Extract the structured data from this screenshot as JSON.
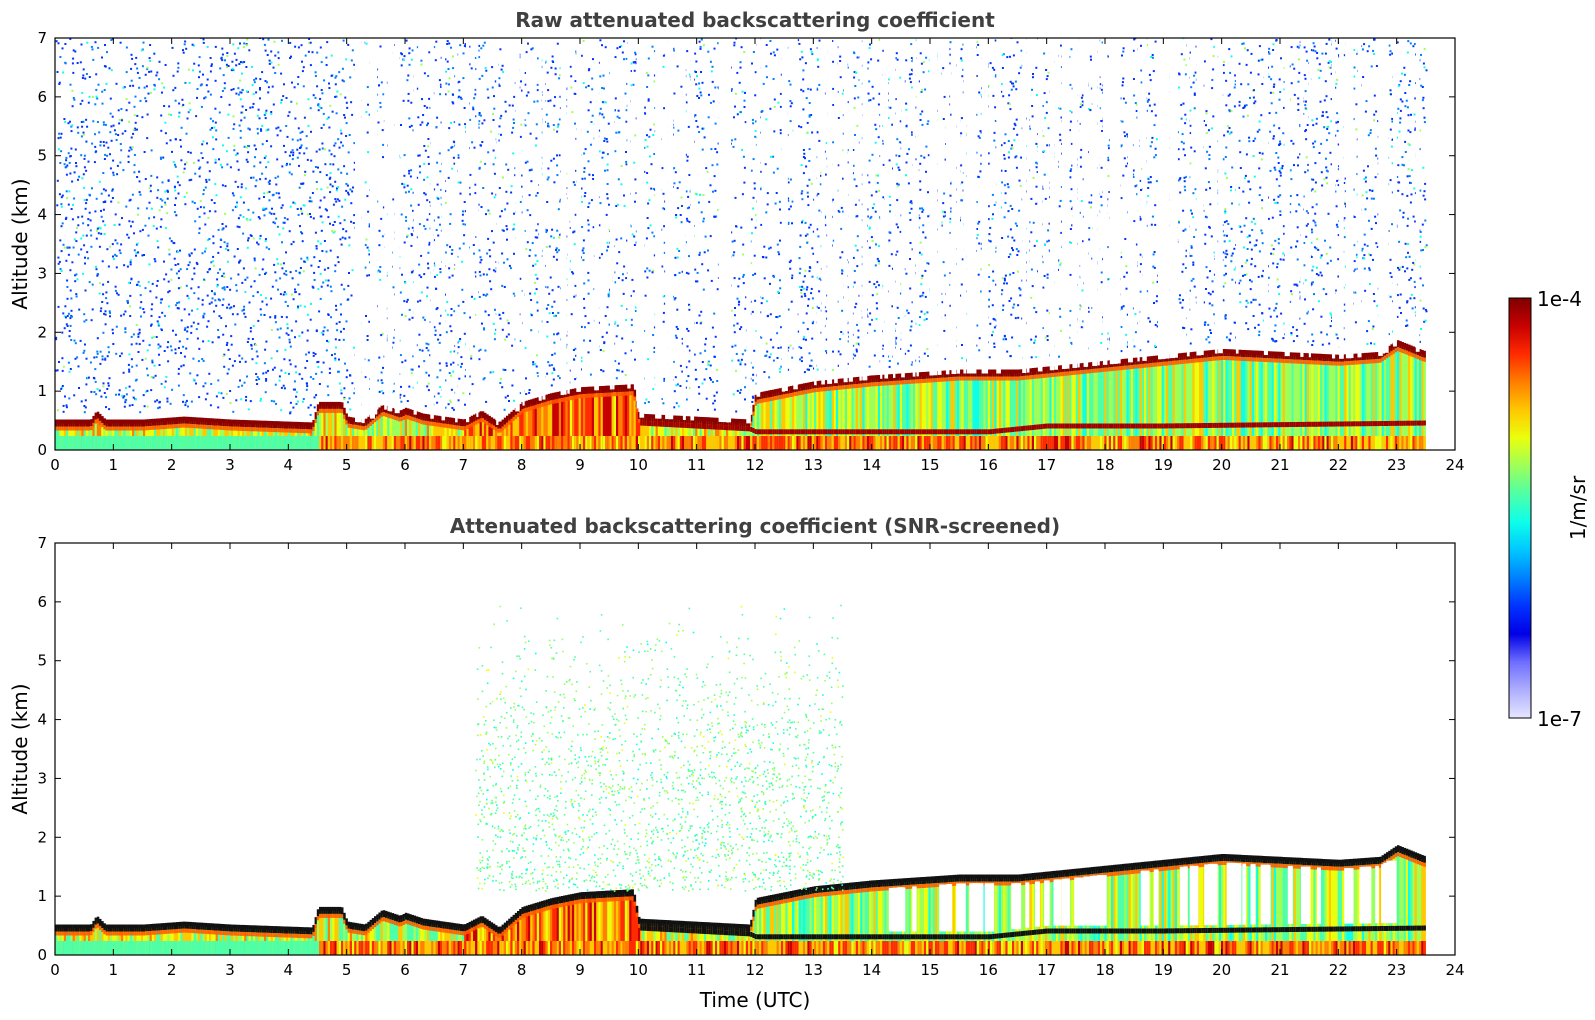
{
  "chart_data": [
    {
      "type": "heatmap",
      "title": "Raw attenuated backscattering coefficient",
      "xlabel": "",
      "ylabel": "Altitude (km)",
      "xlim": [
        0,
        24
      ],
      "ylim": [
        0,
        7
      ],
      "x_ticks": [
        "0",
        "1",
        "2",
        "3",
        "4",
        "5",
        "6",
        "7",
        "8",
        "9",
        "10",
        "11",
        "12",
        "13",
        "14",
        "15",
        "16",
        "17",
        "18",
        "19",
        "20",
        "21",
        "22",
        "23",
        "24"
      ],
      "y_ticks": [
        "0",
        "1",
        "2",
        "3",
        "4",
        "5",
        "6",
        "7"
      ],
      "data_end_time": 23.5,
      "boundary_layer_top_km": [
        [
          0,
          0.45
        ],
        [
          0.6,
          0.45
        ],
        [
          0.7,
          0.6
        ],
        [
          0.85,
          0.45
        ],
        [
          1.5,
          0.45
        ],
        [
          2.2,
          0.5
        ],
        [
          3,
          0.45
        ],
        [
          4.4,
          0.4
        ],
        [
          4.5,
          0.75
        ],
        [
          4.9,
          0.75
        ],
        [
          5.0,
          0.5
        ],
        [
          5.3,
          0.45
        ],
        [
          5.6,
          0.7
        ],
        [
          5.9,
          0.6
        ],
        [
          6.0,
          0.65
        ],
        [
          6.3,
          0.55
        ],
        [
          7.0,
          0.45
        ],
        [
          7.3,
          0.6
        ],
        [
          7.6,
          0.4
        ],
        [
          8.0,
          0.75
        ],
        [
          8.5,
          0.9
        ],
        [
          9.0,
          1.0
        ],
        [
          9.9,
          1.05
        ],
        [
          10.0,
          0.55
        ],
        [
          11.9,
          0.45
        ],
        [
          12.0,
          0.9
        ],
        [
          12.5,
          1.0
        ],
        [
          13.0,
          1.1
        ],
        [
          14.0,
          1.2
        ],
        [
          15.5,
          1.3
        ],
        [
          16.5,
          1.3
        ],
        [
          17.5,
          1.4
        ],
        [
          18.5,
          1.5
        ],
        [
          19.5,
          1.6
        ],
        [
          20.0,
          1.65
        ],
        [
          21.0,
          1.6
        ],
        [
          22.0,
          1.55
        ],
        [
          22.7,
          1.6
        ],
        [
          23.0,
          1.8
        ],
        [
          23.5,
          1.6
        ]
      ],
      "lower_layer_km": [
        [
          10.0,
          0.45
        ],
        [
          11.9,
          0.35
        ],
        [
          12.0,
          0.3
        ],
        [
          13.5,
          0.3
        ],
        [
          15.0,
          0.3
        ],
        [
          16.0,
          0.3
        ],
        [
          17.0,
          0.4
        ],
        [
          18.0,
          0.4
        ],
        [
          19.0,
          0.4
        ],
        [
          23.5,
          0.45
        ]
      ],
      "colormap": "jet",
      "clim": [
        1e-07,
        0.0001
      ]
    },
    {
      "type": "heatmap",
      "title": "Attenuated backscattering coefficient (SNR-screened)",
      "xlabel": "Time (UTC)",
      "ylabel": "Altitude (km)",
      "xlim": [
        0,
        24
      ],
      "ylim": [
        0,
        7
      ],
      "x_ticks": [
        "0",
        "1",
        "2",
        "3",
        "4",
        "5",
        "6",
        "7",
        "8",
        "9",
        "10",
        "11",
        "12",
        "13",
        "14",
        "15",
        "16",
        "17",
        "18",
        "19",
        "20",
        "21",
        "22",
        "23",
        "24"
      ],
      "y_ticks": [
        "0",
        "1",
        "2",
        "3",
        "4",
        "5",
        "6",
        "7"
      ],
      "data_end_time": 23.5,
      "aerosol_plume": {
        "x_range": [
          7.2,
          13.5
        ],
        "alt_range_km": [
          1.1,
          6.0
        ]
      },
      "colormap": "jet",
      "clim": [
        1e-07,
        0.0001
      ]
    }
  ],
  "colorbar": {
    "max_label": "1e-4",
    "min_label": "1e-7",
    "label": "1/m/sr",
    "colors": [
      "#7f0000",
      "#c80000",
      "#ff2a00",
      "#ff7f00",
      "#ffc800",
      "#eaff0d",
      "#9dff5a",
      "#4fffa7",
      "#0dffea",
      "#00c8ff",
      "#007fff",
      "#0033ff",
      "#0000e6",
      "#6e6eff",
      "#aeaeff",
      "#e6e6ff"
    ]
  }
}
